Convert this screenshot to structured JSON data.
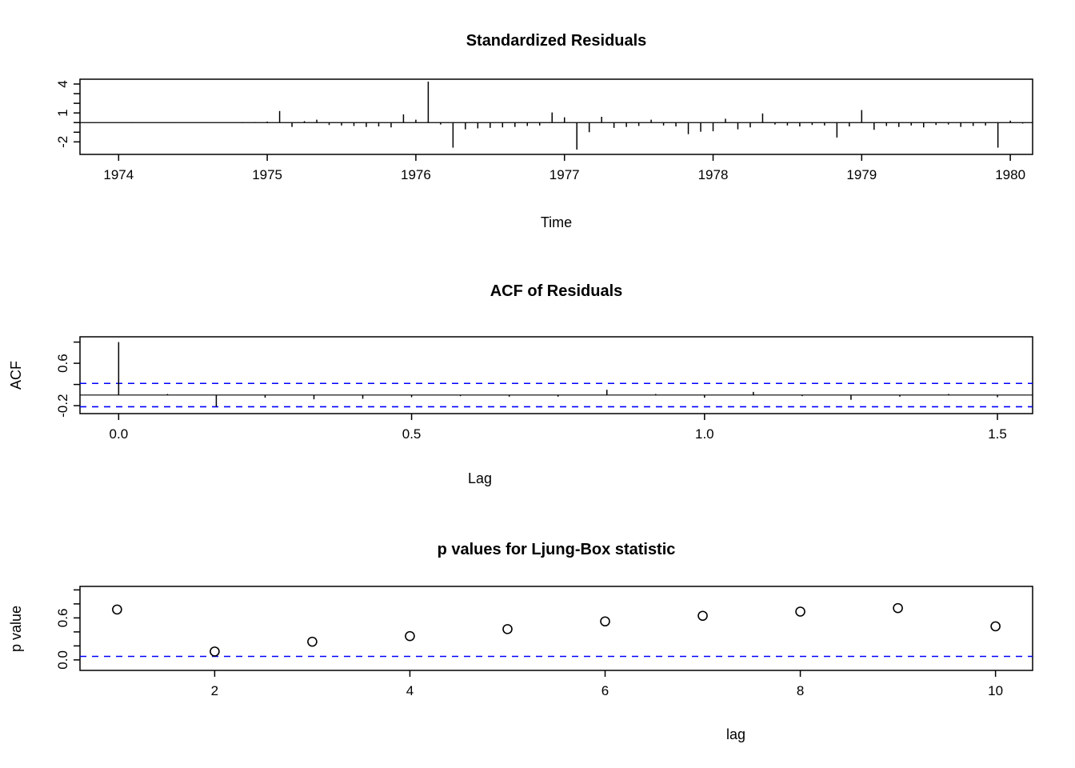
{
  "colors": {
    "line": "#000000",
    "confidence_dash": "#0000ff",
    "background": "#ffffff"
  },
  "chart_data": [
    {
      "type": "line",
      "style": "spikes",
      "title": "Standardized Residuals",
      "xlabel": "Time",
      "ylabel": "",
      "xlim": [
        1973.74,
        1980.15
      ],
      "ylim": [
        -3.3,
        4.5
      ],
      "grid": false,
      "xticks": [
        {
          "v": 1974,
          "label": "1974"
        },
        {
          "v": 1975,
          "label": "1975"
        },
        {
          "v": 1976,
          "label": "1976"
        },
        {
          "v": 1977,
          "label": "1977"
        },
        {
          "v": 1978,
          "label": "1978"
        },
        {
          "v": 1979,
          "label": "1979"
        },
        {
          "v": 1980,
          "label": "1980"
        }
      ],
      "yticks": [
        {
          "v": -2,
          "label": "-2"
        },
        {
          "v": -1,
          "label": ""
        },
        {
          "v": 0,
          "label": ""
        },
        {
          "v": 1,
          "label": "1"
        },
        {
          "v": 2,
          "label": ""
        },
        {
          "v": 3,
          "label": ""
        },
        {
          "v": 4,
          "label": "4"
        }
      ],
      "zero_line": 0,
      "start": 1973.75,
      "frequency": 12,
      "values": [
        0.02,
        -0.03,
        0.02,
        -0.02,
        0.03,
        -0.02,
        0.02,
        -0.03,
        0.02,
        -0.02,
        0.03,
        -0.02,
        0.02,
        -0.05,
        0.05,
        0.1,
        1.2,
        -0.45,
        0.15,
        0.3,
        -0.25,
        -0.3,
        -0.35,
        -0.45,
        -0.4,
        -0.5,
        0.85,
        0.3,
        4.25,
        -0.2,
        -2.6,
        -0.7,
        -0.6,
        -0.55,
        -0.5,
        -0.45,
        -0.35,
        -0.3,
        1.05,
        0.55,
        -2.8,
        -1.0,
        0.6,
        -0.55,
        -0.45,
        -0.35,
        0.3,
        -0.3,
        -0.4,
        -1.2,
        -0.95,
        -0.9,
        0.4,
        -0.7,
        -0.5,
        0.95,
        -0.2,
        -0.3,
        -0.4,
        -0.25,
        -0.3,
        -1.55,
        -0.4,
        1.3,
        -0.75,
        -0.35,
        -0.45,
        -0.3,
        -0.5,
        -0.25,
        -0.2,
        -0.45,
        -0.35,
        -0.3,
        -2.6,
        0.2,
        -0.1
      ]
    },
    {
      "type": "bar",
      "style": "acf",
      "title": "ACF of Residuals",
      "xlabel": "Lag",
      "ylabel": "ACF",
      "xlim": [
        -0.066,
        1.56
      ],
      "ylim": [
        -0.35,
        1.1
      ],
      "grid": false,
      "xticks": [
        {
          "v": 0.0,
          "label": "0.0"
        },
        {
          "v": 0.5,
          "label": "0.5"
        },
        {
          "v": 1.0,
          "label": "1.0"
        },
        {
          "v": 1.5,
          "label": "1.5"
        }
      ],
      "yticks": [
        {
          "v": -0.2,
          "label": "-0.2"
        },
        {
          "v": 0.2,
          "label": ""
        },
        {
          "v": 0.6,
          "label": "0.6"
        },
        {
          "v": 1.0,
          "label": ""
        }
      ],
      "zero_line": 0,
      "confidence_band": 0.22,
      "lag_frequency": 12,
      "values": [
        1.0,
        0.02,
        -0.22,
        -0.05,
        -0.08,
        -0.07,
        -0.04,
        -0.02,
        -0.03,
        -0.03,
        0.1,
        0.02,
        -0.05,
        0.06,
        -0.02,
        -0.09,
        -0.03,
        0.02,
        -0.04
      ]
    },
    {
      "type": "scatter",
      "style": "points",
      "title": "p values for Ljung-Box statistic",
      "xlabel": "lag",
      "ylabel": "p value",
      "xlim": [
        0.62,
        10.38
      ],
      "ylim": [
        -0.15,
        1.05
      ],
      "grid": false,
      "xticks": [
        {
          "v": 2,
          "label": "2"
        },
        {
          "v": 4,
          "label": "4"
        },
        {
          "v": 6,
          "label": "6"
        },
        {
          "v": 8,
          "label": "8"
        },
        {
          "v": 10,
          "label": "10"
        }
      ],
      "yticks": [
        {
          "v": 0.0,
          "label": "0.0"
        },
        {
          "v": 0.2,
          "label": ""
        },
        {
          "v": 0.4,
          "label": ""
        },
        {
          "v": 0.6,
          "label": "0.6"
        },
        {
          "v": 0.8,
          "label": ""
        },
        {
          "v": 1.0,
          "label": ""
        }
      ],
      "significance_line": 0.05,
      "lags": [
        1,
        2,
        3,
        4,
        5,
        6,
        7,
        8,
        9,
        10
      ],
      "values": [
        0.72,
        0.12,
        0.26,
        0.34,
        0.44,
        0.55,
        0.63,
        0.69,
        0.74,
        0.48
      ]
    }
  ]
}
